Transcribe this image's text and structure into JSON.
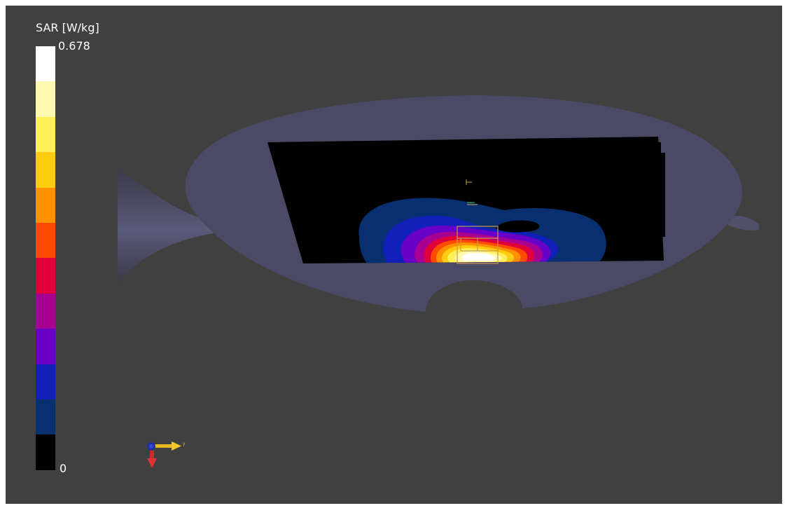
{
  "legend": {
    "title": "SAR [W/kg]",
    "max_label": "0.678",
    "min_label": "0",
    "colors": [
      "#ffffff",
      "#fffab0",
      "#fff05a",
      "#ffcc10",
      "#ff9000",
      "#ff4a00",
      "#e0003a",
      "#a80090",
      "#6800c8",
      "#1020b8",
      "#083070",
      "#000000"
    ]
  },
  "axes_triad": {
    "y_label": "y"
  },
  "colors": {
    "background": "#404040",
    "phantom": "#4a4a66",
    "measurement_area": "#000000"
  }
}
